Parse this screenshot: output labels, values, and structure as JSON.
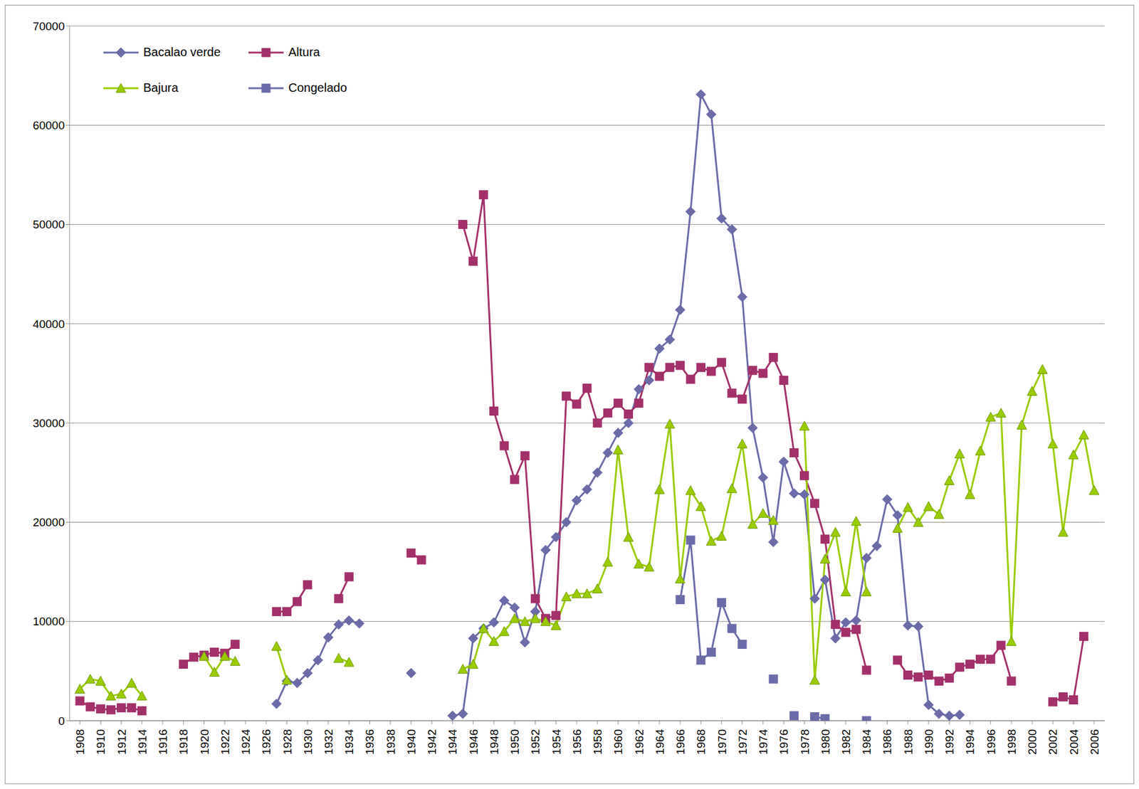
{
  "chart_data": {
    "type": "line",
    "x": [
      1908,
      1909,
      1910,
      1911,
      1912,
      1913,
      1914,
      1915,
      1916,
      1917,
      1918,
      1919,
      1920,
      1921,
      1922,
      1923,
      1924,
      1925,
      1926,
      1927,
      1928,
      1929,
      1930,
      1931,
      1932,
      1933,
      1934,
      1935,
      1936,
      1937,
      1938,
      1939,
      1940,
      1941,
      1942,
      1943,
      1944,
      1945,
      1946,
      1947,
      1948,
      1949,
      1950,
      1951,
      1952,
      1953,
      1954,
      1955,
      1956,
      1957,
      1958,
      1959,
      1960,
      1961,
      1962,
      1963,
      1964,
      1965,
      1966,
      1967,
      1968,
      1969,
      1970,
      1971,
      1972,
      1973,
      1974,
      1975,
      1976,
      1977,
      1978,
      1979,
      1980,
      1981,
      1982,
      1983,
      1984,
      1985,
      1986,
      1987,
      1988,
      1989,
      1990,
      1991,
      1992,
      1993,
      1994,
      1995,
      1996,
      1997,
      1998,
      1999,
      2000,
      2001,
      2002,
      2003,
      2004,
      2005,
      2006
    ],
    "series": [
      {
        "name": "Bacalao verde",
        "color": "#6B6BA9",
        "marker": "diamond",
        "values": [
          null,
          null,
          null,
          null,
          null,
          null,
          null,
          null,
          null,
          null,
          null,
          null,
          null,
          null,
          null,
          null,
          null,
          null,
          null,
          1700,
          4000,
          3800,
          4800,
          6100,
          8400,
          9700,
          10100,
          9800,
          null,
          null,
          null,
          null,
          4800,
          null,
          null,
          null,
          500,
          700,
          8300,
          9300,
          9900,
          12100,
          11400,
          7900,
          11000,
          17200,
          18500,
          20000,
          22200,
          23300,
          25000,
          27000,
          29000,
          30000,
          33400,
          34300,
          37500,
          38400,
          41400,
          51300,
          63100,
          61100,
          50600,
          49500,
          42700,
          29500,
          24500,
          18000,
          26100,
          22900,
          22800,
          12300,
          14200,
          8300,
          9900,
          10100,
          16400,
          17600,
          22300,
          20700,
          9600,
          9500,
          1600,
          700,
          500,
          600,
          null,
          null,
          null,
          null,
          null,
          null,
          null,
          null,
          null,
          null,
          null,
          null,
          null
        ]
      },
      {
        "name": "Altura",
        "color": "#A3306A",
        "marker": "square",
        "values": [
          2000,
          1400,
          1200,
          1100,
          1300,
          1300,
          1000,
          null,
          null,
          null,
          5700,
          6400,
          6600,
          6900,
          6800,
          7700,
          null,
          null,
          null,
          11000,
          11000,
          12000,
          13700,
          null,
          null,
          12300,
          14500,
          null,
          null,
          null,
          null,
          null,
          16900,
          16200,
          null,
          null,
          null,
          50000,
          46300,
          53000,
          31200,
          27700,
          24300,
          26700,
          12300,
          10300,
          10600,
          32700,
          31900,
          33500,
          30000,
          31000,
          32000,
          30900,
          32000,
          35600,
          34700,
          35600,
          35800,
          34400,
          35600,
          35200,
          36100,
          33000,
          32400,
          35300,
          35000,
          36600,
          34300,
          27000,
          24700,
          21900,
          18300,
          9700,
          8900,
          9200,
          5100,
          null,
          null,
          6100,
          4600,
          4400,
          4600,
          4000,
          4300,
          5400,
          5700,
          6200,
          6200,
          7600,
          4000,
          null,
          null,
          null,
          1900,
          2400,
          2100,
          8500,
          null
        ]
      },
      {
        "name": "Bajura",
        "color": "#99CC00",
        "marker": "triangle",
        "values": [
          3200,
          4200,
          4000,
          2500,
          2700,
          3800,
          2500,
          null,
          null,
          null,
          null,
          null,
          6500,
          4900,
          6500,
          6000,
          null,
          null,
          null,
          7500,
          4100,
          null,
          null,
          null,
          null,
          6300,
          5900,
          null,
          null,
          null,
          null,
          null,
          null,
          null,
          null,
          null,
          null,
          5200,
          5700,
          9300,
          8000,
          9000,
          10300,
          10000,
          10300,
          10000,
          9600,
          12500,
          12800,
          12800,
          13300,
          16000,
          27300,
          18500,
          15800,
          15500,
          23300,
          29900,
          14300,
          23200,
          21600,
          18100,
          18600,
          23400,
          27900,
          19800,
          20900,
          20200,
          null,
          null,
          29700,
          4100,
          16300,
          19000,
          13000,
          20100,
          13000,
          null,
          null,
          19400,
          21500,
          20000,
          21600,
          20800,
          24200,
          26900,
          22800,
          27200,
          30600,
          31000,
          8000,
          29800,
          33200,
          35400,
          27900,
          19000,
          26800,
          28800,
          23200
        ]
      },
      {
        "name": "Congelado",
        "color": "#6B6BA9",
        "marker": "square",
        "values": [
          null,
          null,
          null,
          null,
          null,
          null,
          null,
          null,
          null,
          null,
          null,
          null,
          null,
          null,
          null,
          null,
          null,
          null,
          null,
          null,
          null,
          null,
          null,
          null,
          null,
          null,
          null,
          null,
          null,
          null,
          null,
          null,
          null,
          null,
          null,
          null,
          null,
          null,
          null,
          null,
          null,
          null,
          null,
          null,
          null,
          null,
          null,
          null,
          null,
          null,
          null,
          null,
          null,
          null,
          null,
          null,
          null,
          null,
          12200,
          18200,
          6100,
          6900,
          11900,
          9300,
          7700,
          null,
          null,
          4200,
          null,
          500,
          null,
          400,
          200,
          null,
          null,
          null,
          0,
          null,
          null,
          null,
          null,
          null,
          null,
          null,
          null,
          null,
          null,
          null,
          null,
          null,
          null,
          null,
          null,
          null,
          null,
          null,
          null,
          null,
          null
        ]
      }
    ],
    "xlim": [
      1907,
      2007
    ],
    "xticks": [
      1908,
      1910,
      1912,
      1914,
      1916,
      1918,
      1920,
      1922,
      1924,
      1926,
      1928,
      1930,
      1932,
      1934,
      1936,
      1938,
      1940,
      1942,
      1944,
      1946,
      1948,
      1950,
      1952,
      1954,
      1956,
      1958,
      1960,
      1962,
      1964,
      1966,
      1968,
      1970,
      1972,
      1974,
      1976,
      1978,
      1980,
      1982,
      1984,
      1986,
      1988,
      1990,
      1992,
      1994,
      1996,
      1998,
      2000,
      2002,
      2004,
      2006
    ],
    "ylim": [
      0,
      70000
    ],
    "yticks": [
      0,
      10000,
      20000,
      30000,
      40000,
      50000,
      60000,
      70000
    ],
    "grid": true,
    "legend": "upper left"
  }
}
